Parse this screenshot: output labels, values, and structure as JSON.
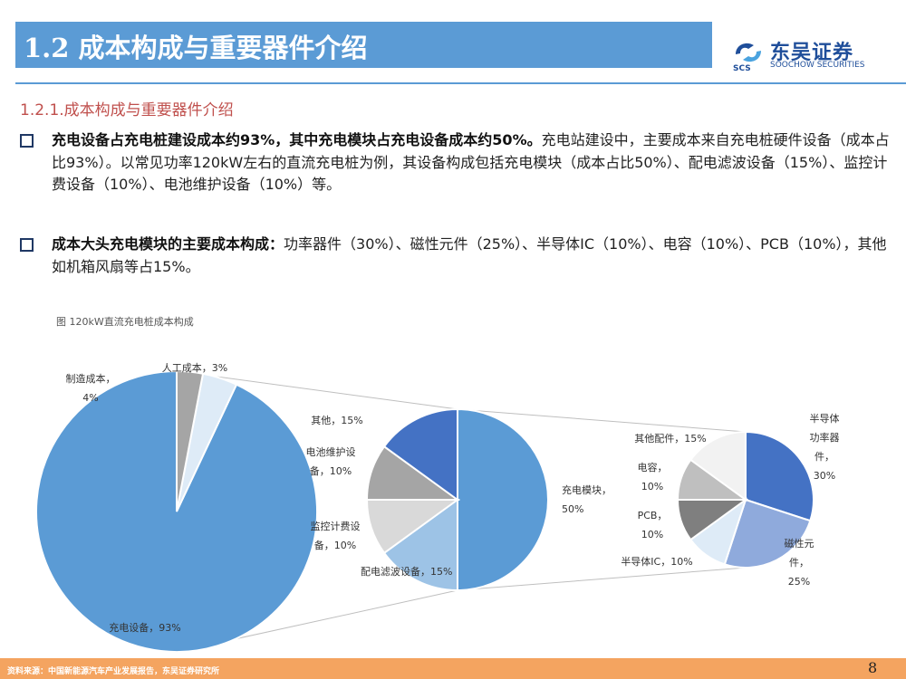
{
  "header": {
    "title": "1.2 成本构成与重要器件介绍",
    "logo_cn": "东吴证券",
    "logo_en": "SOOCHOW SECURITIES",
    "logo_mark": "SCS"
  },
  "subhead": "1.2.1.成本构成与重要器件介绍",
  "bullets": [
    {
      "bold": "充电设备占充电桩建设成本约93%，其中充电模块占充电设备成本约50%。",
      "text": "充电站建设中，主要成本来自充电桩硬件设备（成本占比93%）。以常见功率120kW左右的直流充电桩为例，其设备构成包括充电模块（成本占比50%）、配电滤波设备（15%）、监控计费设备（10%）、电池维护设备（10%）等。"
    },
    {
      "bold": "成本大头充电模块的主要成本构成：",
      "text": "功率器件（30%）、磁性元件（25%）、半导体IC（10%）、电容（10%）、PCB（10%），其他如机箱风扇等占15%。"
    }
  ],
  "figure_caption": "图 120kW直流充电桩成本构成",
  "chart_data": [
    {
      "type": "pie",
      "slices": [
        {
          "label": "充电设备，93%",
          "value": 93,
          "color": "#5b9bd5"
        },
        {
          "label": "制造成本，4%",
          "value": 4,
          "color": "#deebf7"
        },
        {
          "label": "人工成本，3%",
          "value": 3,
          "color": "#a5a5a5"
        }
      ]
    },
    {
      "type": "pie",
      "slices": [
        {
          "label": "充电模块，50%",
          "value": 50,
          "color": "#5b9bd5"
        },
        {
          "label": "配电滤波设备，15%",
          "value": 15,
          "color": "#9dc3e6"
        },
        {
          "label": "监控计费设备，10%",
          "value": 10,
          "color": "#d9d9d9"
        },
        {
          "label": "电池维护设备，10%",
          "value": 10,
          "color": "#a5a5a5"
        },
        {
          "label": "其他，15%",
          "value": 15,
          "color": "#4472c4"
        }
      ]
    },
    {
      "type": "pie",
      "slices": [
        {
          "label": "半导体功率器件，30%",
          "value": 30,
          "color": "#4472c4"
        },
        {
          "label": "磁性元件，25%",
          "value": 25,
          "color": "#8faadc"
        },
        {
          "label": "半导体IC，10%",
          "value": 10,
          "color": "#deebf7"
        },
        {
          "label": "PCB，10%",
          "value": 10,
          "color": "#7f7f7f"
        },
        {
          "label": "电容，10%",
          "value": 10,
          "color": "#bfbfbf"
        },
        {
          "label": "其他配件，15%",
          "value": 15,
          "color": "#f2f2f2"
        }
      ]
    }
  ],
  "footer": {
    "source": "资料来源：中国新能源汽车产业发展报告，东吴证券研究所",
    "page": "8"
  }
}
